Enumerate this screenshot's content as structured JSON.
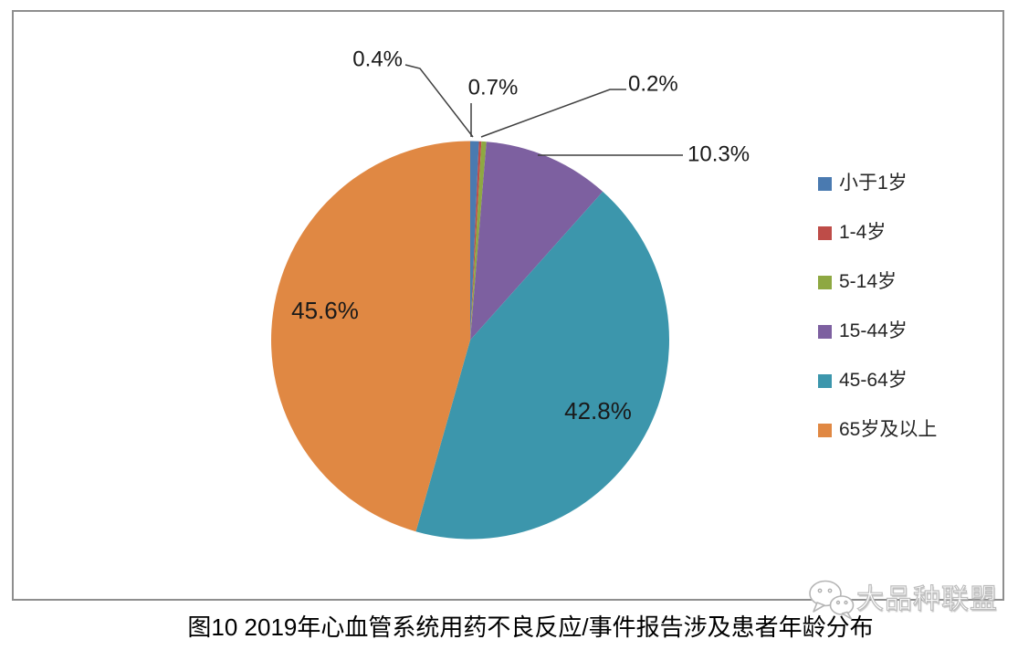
{
  "page": {
    "background_color": "#ffffff",
    "frame_border_color": "#8e8e8e"
  },
  "caption": "图10 2019年心血管系统用药不良反应/事件报告涉及患者年龄分布",
  "watermark": {
    "icon": "wechat-bubbles-icon",
    "text": "大品种联盟"
  },
  "chart_data": {
    "type": "pie",
    "title": "图10 2019年心血管系统用药不良反应/事件报告涉及患者年龄分布",
    "start_angle_deg": 0,
    "direction": "clockwise",
    "unit": "%",
    "total": 100,
    "categories": [
      "小于1岁",
      "1-4岁",
      "5-14岁",
      "15-44岁",
      "45-64岁",
      "65岁及以上"
    ],
    "values": [
      0.7,
      0.2,
      0.4,
      10.3,
      42.8,
      45.6
    ],
    "labels": [
      "0.7%",
      "0.2%",
      "0.4%",
      "10.3%",
      "42.8%",
      "45.6%"
    ],
    "colors": [
      "#4a7ab0",
      "#be4c48",
      "#8ea842",
      "#7d60a0",
      "#3c96ac",
      "#e08843"
    ],
    "legend_position": "right",
    "label_color": "#1a1a1a",
    "leader_line_color": "#3f3f3f",
    "legend_text_color": "#262626"
  }
}
